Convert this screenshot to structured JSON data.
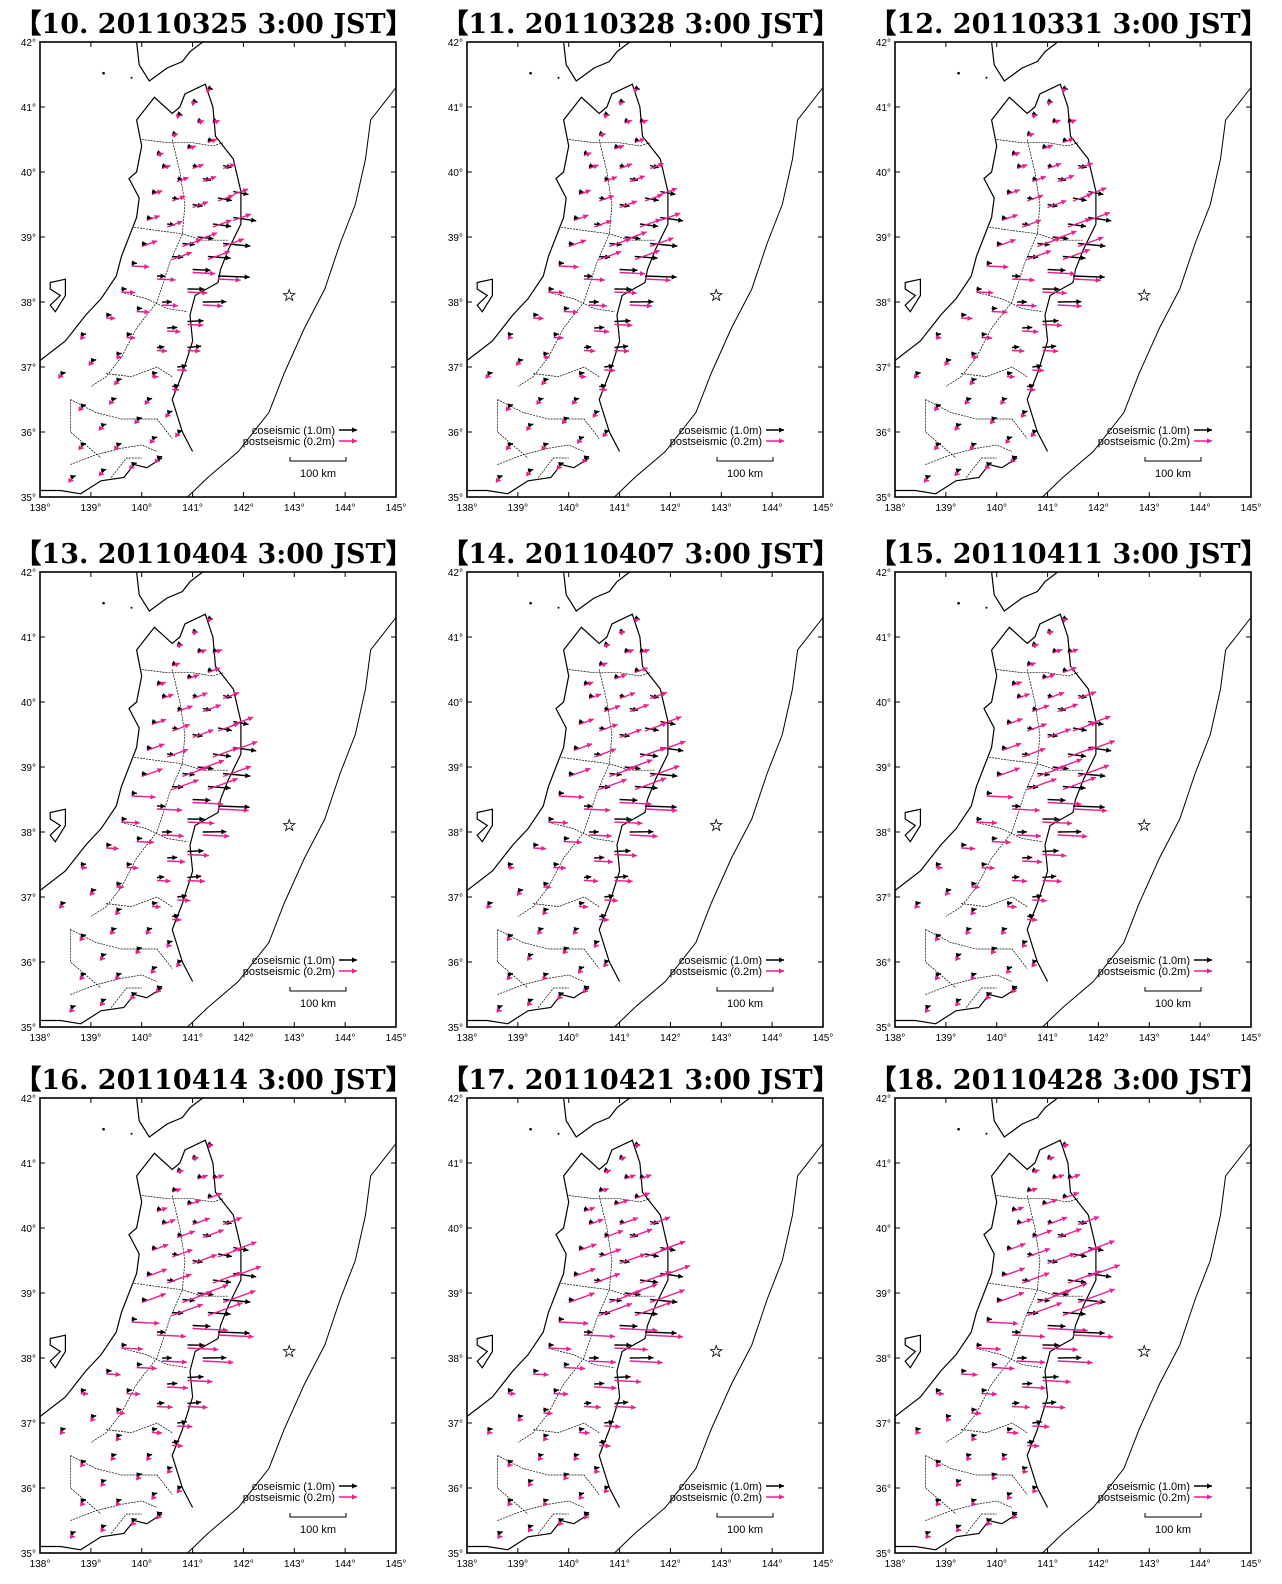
{
  "colors": {
    "coseismic": "#000000",
    "postseismic": "#ea1f8e",
    "coast": "#000000"
  },
  "map": {
    "lon_ticks": [
      "138°",
      "139°",
      "140°",
      "141°",
      "142°",
      "143°",
      "144°",
      "145°"
    ],
    "lat_ticks": [
      "35°",
      "36°",
      "37°",
      "38°",
      "39°",
      "40°",
      "41°",
      "42°"
    ],
    "legend": {
      "coseismic": "coseismic (1.0m)",
      "postseismic": "postseismic (0.2m)",
      "scale": "100 km"
    }
  },
  "panels": [
    {
      "title": "【10. 20110325 3:00 JST】",
      "post_scale": 0.62
    },
    {
      "title": "【11. 20110328 3:00 JST】",
      "post_scale": 0.7
    },
    {
      "title": "【12. 20110331 3:00 JST】",
      "post_scale": 0.76
    },
    {
      "title": "【13. 20110404 3:00 JST】",
      "post_scale": 0.84
    },
    {
      "title": "【14. 20110407 3:00 JST】",
      "post_scale": 0.88
    },
    {
      "title": "【15. 20110411 3:00 JST】",
      "post_scale": 0.93
    },
    {
      "title": "【16. 20110414 3:00 JST】",
      "post_scale": 0.97
    },
    {
      "title": "【17. 20110421 3:00 JST】",
      "post_scale": 1.04
    },
    {
      "title": "【18. 20110428 3:00 JST】",
      "post_scale": 1.1
    }
  ]
}
